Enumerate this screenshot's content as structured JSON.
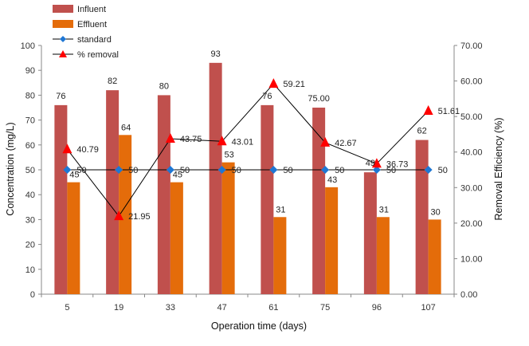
{
  "chart_data": {
    "type": "bar",
    "categories": [
      "5",
      "19",
      "33",
      "47",
      "61",
      "75",
      "96",
      "107"
    ],
    "xlabel": "Operation time (days)",
    "ylabel": "Concentration (mg/L)",
    "y2label": "Removal Efficiency (%)",
    "ylim": [
      0,
      100
    ],
    "y2lim": [
      0,
      70
    ],
    "yticks": [
      "0",
      "10",
      "20",
      "30",
      "40",
      "50",
      "60",
      "70",
      "80",
      "90",
      "100"
    ],
    "y2ticks": [
      "0.00",
      "10.00",
      "20.00",
      "30.00",
      "40.00",
      "50.00",
      "60.00",
      "70.00"
    ],
    "legend_position": "top-left",
    "series": [
      {
        "name": "Influent",
        "kind": "bar",
        "color": "#c0504d",
        "values": [
          76,
          82,
          80,
          93,
          76,
          75,
          49,
          62
        ],
        "labels": [
          "76",
          "82",
          "80",
          "93",
          "76",
          "75.00",
          "49",
          "62"
        ]
      },
      {
        "name": "Effluent",
        "kind": "bar",
        "color": "#e46c0a",
        "values": [
          45,
          64,
          45,
          53,
          31,
          43,
          31,
          30
        ],
        "labels": [
          "45",
          "64",
          "45",
          "53",
          "31",
          "43",
          "31",
          "30"
        ]
      },
      {
        "name": "standard",
        "kind": "line",
        "axis": "left",
        "color": "#1f77d4",
        "marker": "diamond",
        "values": [
          50,
          50,
          50,
          50,
          50,
          50,
          50,
          50
        ],
        "labels": [
          "50",
          "50",
          "50",
          "50",
          "50",
          "50",
          "50",
          "50"
        ]
      },
      {
        "name": "% removal",
        "kind": "line",
        "axis": "right",
        "color": "#ff0000",
        "marker": "triangle",
        "values": [
          40.79,
          21.95,
          43.75,
          43.01,
          59.21,
          42.67,
          36.73,
          51.61
        ],
        "labels": [
          "40.79",
          "21.95",
          "43.75",
          "43.01",
          "59.21",
          "42.67",
          "36.73",
          "51.61"
        ]
      }
    ]
  }
}
